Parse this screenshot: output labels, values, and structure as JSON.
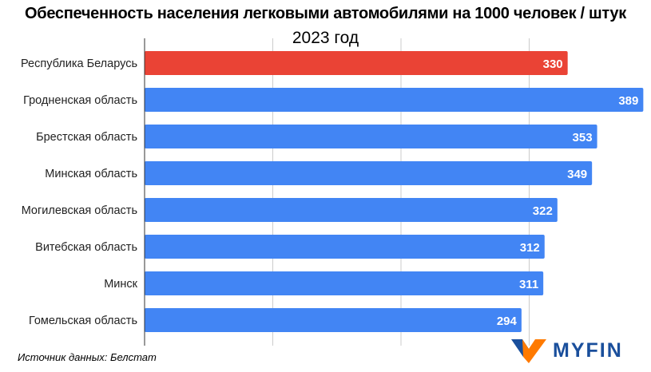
{
  "chart_data": {
    "type": "bar",
    "orientation": "horizontal",
    "title": "Обеспеченность населения легковыми автомобилями на 1000 человек / штук",
    "subtitle": "2023 год",
    "categories": [
      "Республика Беларусь",
      "Гродненская область",
      "Брестская область",
      "Минская область",
      "Могилевская область",
      "Витебская область",
      "Минск",
      "Гомельская область"
    ],
    "values": [
      330,
      389,
      353,
      349,
      322,
      312,
      311,
      294
    ],
    "bar_colors": [
      "#ea4335",
      "#4285f4",
      "#4285f4",
      "#4285f4",
      "#4285f4",
      "#4285f4",
      "#4285f4",
      "#4285f4"
    ],
    "xlim": [
      0,
      395
    ],
    "gridlines": [
      100,
      200,
      300
    ],
    "grid": true,
    "data_labels": true
  },
  "source": "Источник данных: Белстат",
  "logo": {
    "text": "MYFIN",
    "colors": {
      "blue": "#1a4f9c",
      "orange": "#ff7a00"
    }
  }
}
